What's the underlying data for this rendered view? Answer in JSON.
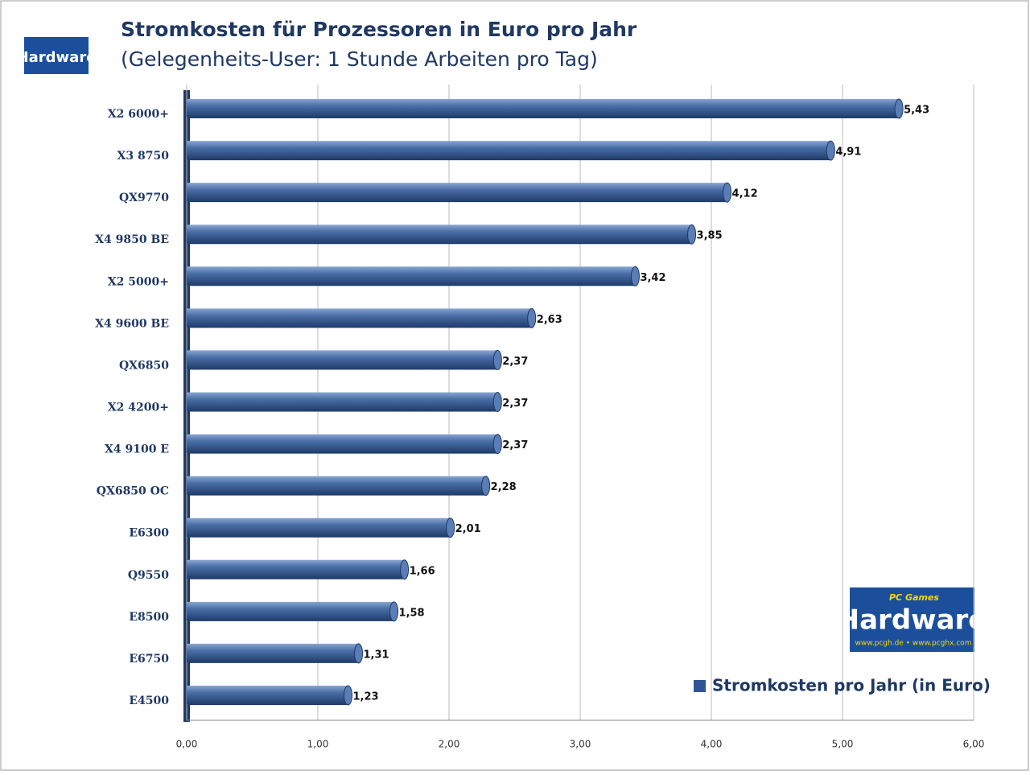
{
  "logo": {
    "brand": "PC Games",
    "name": "Hardware",
    "url": "www.pcgh.de • www.pcghx.com"
  },
  "chart_data": {
    "type": "bar",
    "orientation": "horizontal",
    "title": "Stromkosten für Prozessoren in Euro pro Jahr",
    "subtitle": "(Gelegenheits-User: 1 Stunde Arbeiten pro Tag)",
    "categories": [
      "X2 6000+",
      "X3 8750",
      "QX9770",
      "X4 9850 BE",
      "X2 5000+",
      "X4 9600 BE",
      "QX6850",
      "X2 4200+",
      "X4 9100 E",
      "QX6850 OC",
      "E6300",
      "Q9550",
      "E8500",
      "E6750",
      "E4500"
    ],
    "series": [
      {
        "name": "Stromkosten pro Jahr (in Euro)",
        "color": "#2f5597",
        "values": [
          5.43,
          4.91,
          4.12,
          3.85,
          3.42,
          2.63,
          2.37,
          2.37,
          2.37,
          2.28,
          2.01,
          1.66,
          1.58,
          1.31,
          1.23
        ],
        "value_labels": [
          "5,43",
          "4,91",
          "4,12",
          "3,85",
          "3,42",
          "2,63",
          "2,37",
          "2,37",
          "2,37",
          "2,28",
          "2,01",
          "1,66",
          "1,58",
          "1,31",
          "1,23"
        ]
      }
    ],
    "xlim": [
      0,
      6
    ],
    "xticks": [
      {
        "value": 0,
        "label": "0,00"
      },
      {
        "value": 1,
        "label": "1,00"
      },
      {
        "value": 2,
        "label": "2,00"
      },
      {
        "value": 3,
        "label": "3,00"
      },
      {
        "value": 4,
        "label": "4,00"
      },
      {
        "value": 5,
        "label": "5,00"
      },
      {
        "value": 6,
        "label": "6,00"
      }
    ],
    "grid": true,
    "legend": "bottom-right"
  }
}
